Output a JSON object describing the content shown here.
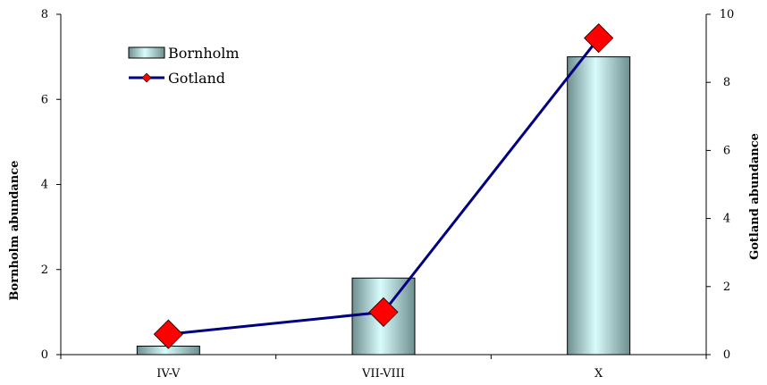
{
  "chart_data": {
    "type": "bar",
    "categories": [
      "IV-V",
      "VII-VIII",
      "X"
    ],
    "series": [
      {
        "name": "Bornholm",
        "type": "bar",
        "axis": "left",
        "values": [
          0.2,
          1.8,
          7.0
        ]
      },
      {
        "name": "Gotland",
        "type": "line",
        "axis": "right",
        "values": [
          0.6,
          1.25,
          9.3
        ]
      }
    ],
    "ylabel_left": "Bornholm abundance",
    "ylabel_right": "Gotland abundance",
    "ylim_left": [
      0,
      8
    ],
    "ylim_right": [
      0,
      10
    ],
    "yticks_left": [
      "0",
      "2",
      "4",
      "6",
      "8"
    ],
    "yticks_right": [
      "0",
      "2",
      "4",
      "6",
      "8",
      "10"
    ],
    "grid": false,
    "legend": {
      "placement": "top-left",
      "entries": [
        "Bornholm",
        "Gotland"
      ]
    },
    "colors": {
      "bar_light": "#d8fbfb",
      "bar_dark": "#6f8f8f",
      "bar_stroke": "#000000",
      "line": "#000080",
      "marker": "#ff0000",
      "axis": "#000000"
    }
  }
}
